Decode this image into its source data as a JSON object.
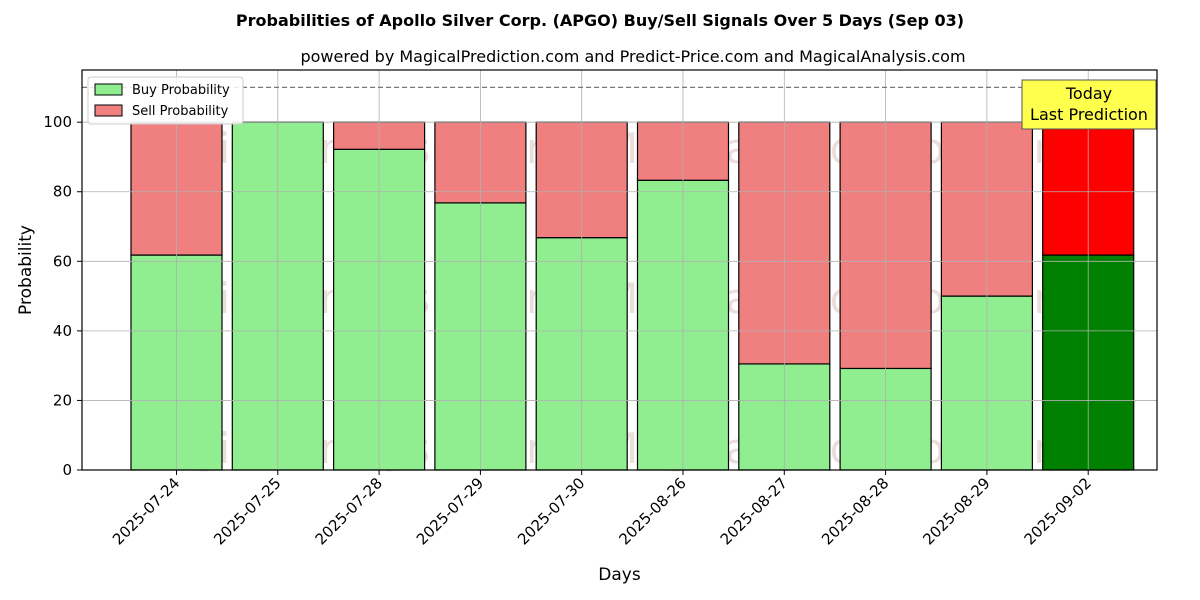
{
  "chart_data": {
    "type": "bar",
    "stacked": true,
    "title": "Probabilities of Apollo Silver Corp. (APGO) Buy/Sell Signals Over 5 Days (Sep 03)",
    "subtitle": "powered by MagicalPrediction.com and Predict-Price.com and MagicalAnalysis.com",
    "xlabel": "Days",
    "ylabel": "Probability",
    "ylim": [
      0,
      115
    ],
    "yticks": [
      0,
      20,
      40,
      60,
      80,
      100
    ],
    "grid": true,
    "legend_position": "top-left",
    "reference_line": {
      "y": 110,
      "style": "dashed"
    },
    "categories": [
      "2025-07-24",
      "2025-07-25",
      "2025-07-28",
      "2025-07-29",
      "2025-07-30",
      "2025-08-26",
      "2025-08-27",
      "2025-08-28",
      "2025-08-29",
      "2025-09-02"
    ],
    "series": [
      {
        "name": "Buy Probability",
        "color": "#90ee90",
        "highlight_color": "#008000",
        "values": [
          61.8,
          100,
          92.2,
          76.8,
          66.8,
          83.3,
          30.5,
          29.2,
          50.0,
          61.8
        ]
      },
      {
        "name": "Sell Probability",
        "color": "#f08080",
        "highlight_color": "#ff0000",
        "values": [
          38.2,
          0,
          7.8,
          23.2,
          33.2,
          16.7,
          69.5,
          70.8,
          50.0,
          38.2
        ]
      }
    ],
    "highlight_index": 9,
    "annotation": {
      "line1": "Today",
      "line2": "Last Prediction",
      "background": "#ffff4d"
    },
    "watermarks": [
      "MagicalAnalysis.com",
      "MagicalPrediction.com"
    ]
  }
}
